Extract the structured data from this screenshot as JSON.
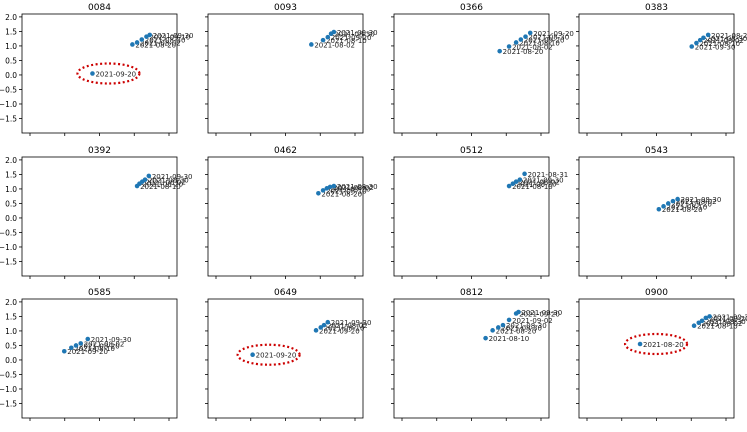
{
  "figure": {
    "shared_y_ticks": [
      "2.0",
      "1.5",
      "1.0",
      "0.5",
      "0.0",
      "−0.5",
      "−1.0",
      "−1.5"
    ]
  },
  "colors": {
    "point": "#1f77b4",
    "highlight": "#cc0000",
    "axis": "#000000",
    "label": "#222222"
  },
  "chart_data": [
    {
      "type": "scatter",
      "title": "0084",
      "ylim": [
        -2,
        2.1
      ],
      "xlim": [
        -1.5,
        1.8
      ],
      "grid": false,
      "points": [
        {
          "x": 0.0,
          "y": 0.05,
          "label": "2021-09-20"
        },
        {
          "x": 0.85,
          "y": 1.05,
          "label": "2021-08-20"
        },
        {
          "x": 0.95,
          "y": 1.12,
          "label": "2021-08-02"
        },
        {
          "x": 1.05,
          "y": 1.22,
          "label": "2021-08-30"
        },
        {
          "x": 1.15,
          "y": 1.32,
          "label": "2021-09-10"
        },
        {
          "x": 1.22,
          "y": 1.38,
          "label": "2021-09-30"
        }
      ],
      "highlight_label": "2021-09-20"
    },
    {
      "type": "scatter",
      "title": "0093",
      "ylim": [
        -2,
        2.1
      ],
      "xlim": [
        -1.5,
        1.8
      ],
      "grid": false,
      "points": [
        {
          "x": 0.7,
          "y": 1.05,
          "label": "2021-08-02"
        },
        {
          "x": 0.95,
          "y": 1.2,
          "label": "2021-08-10"
        },
        {
          "x": 1.05,
          "y": 1.3,
          "label": "2021-09-20"
        },
        {
          "x": 1.12,
          "y": 1.42,
          "label": "2021-08-30"
        },
        {
          "x": 1.18,
          "y": 1.48,
          "label": "2021-09-30"
        }
      ]
    },
    {
      "type": "scatter",
      "title": "0366",
      "ylim": [
        -2,
        2.1
      ],
      "xlim": [
        -1.5,
        1.8
      ],
      "grid": false,
      "points": [
        {
          "x": 0.75,
          "y": 0.82,
          "label": "2021-08-20"
        },
        {
          "x": 0.95,
          "y": 0.98,
          "label": "2021-08-02"
        },
        {
          "x": 1.1,
          "y": 1.12,
          "label": "2021-08-10"
        },
        {
          "x": 1.2,
          "y": 1.22,
          "label": "2021-09-20"
        },
        {
          "x": 1.3,
          "y": 1.32,
          "label": "2021-08-30"
        },
        {
          "x": 1.4,
          "y": 1.45,
          "label": "2021-09-20"
        }
      ]
    },
    {
      "type": "scatter",
      "title": "0383",
      "ylim": [
        -2,
        2.1
      ],
      "xlim": [
        -1.5,
        1.8
      ],
      "grid": false,
      "points": [
        {
          "x": 0.9,
          "y": 0.98,
          "label": "2021-09-30"
        },
        {
          "x": 1.0,
          "y": 1.1,
          "label": "2021-08-10"
        },
        {
          "x": 1.08,
          "y": 1.2,
          "label": "2021-08-02"
        },
        {
          "x": 1.15,
          "y": 1.28,
          "label": "2021-08-30"
        },
        {
          "x": 1.25,
          "y": 1.38,
          "label": "2021-08-20"
        }
      ]
    },
    {
      "type": "scatter",
      "title": "0392",
      "ylim": [
        -2,
        2.1
      ],
      "xlim": [
        -1.5,
        1.8
      ],
      "grid": false,
      "points": [
        {
          "x": 0.95,
          "y": 1.1,
          "label": "2021-08-10"
        },
        {
          "x": 1.0,
          "y": 1.18,
          "label": "2021-08-20"
        },
        {
          "x": 1.06,
          "y": 1.25,
          "label": "2021-08-02"
        },
        {
          "x": 1.12,
          "y": 1.32,
          "label": "2021-08-30"
        },
        {
          "x": 1.2,
          "y": 1.45,
          "label": "2021-09-30"
        }
      ]
    },
    {
      "type": "scatter",
      "title": "0462",
      "ylim": [
        -2,
        2.1
      ],
      "xlim": [
        -1.5,
        1.8
      ],
      "grid": false,
      "points": [
        {
          "x": 0.85,
          "y": 0.85,
          "label": "2021-08-20"
        },
        {
          "x": 0.95,
          "y": 0.95,
          "label": "2021-08-10"
        },
        {
          "x": 1.03,
          "y": 1.02,
          "label": "2021-09-20"
        },
        {
          "x": 1.1,
          "y": 1.07,
          "label": "2021-08-02"
        },
        {
          "x": 1.18,
          "y": 1.1,
          "label": "2021-08-30"
        }
      ]
    },
    {
      "type": "scatter",
      "title": "0512",
      "ylim": [
        -2,
        2.1
      ],
      "xlim": [
        -1.5,
        1.8
      ],
      "grid": false,
      "points": [
        {
          "x": 0.95,
          "y": 1.1,
          "label": "2021-08-10"
        },
        {
          "x": 1.03,
          "y": 1.18,
          "label": "2021-08-20"
        },
        {
          "x": 1.1,
          "y": 1.25,
          "label": "2021-08-02"
        },
        {
          "x": 1.18,
          "y": 1.32,
          "label": "2021-09-30"
        },
        {
          "x": 1.28,
          "y": 1.52,
          "label": "2021-08-31"
        }
      ]
    },
    {
      "type": "scatter",
      "title": "0543",
      "ylim": [
        -2,
        2.1
      ],
      "xlim": [
        -1.5,
        1.8
      ],
      "grid": false,
      "points": [
        {
          "x": 0.2,
          "y": 0.3,
          "label": "2021-08-20"
        },
        {
          "x": 0.3,
          "y": 0.4,
          "label": "2021-08-10"
        },
        {
          "x": 0.4,
          "y": 0.5,
          "label": "2021-09-20"
        },
        {
          "x": 0.5,
          "y": 0.58,
          "label": "2021-08-02"
        },
        {
          "x": 0.6,
          "y": 0.65,
          "label": "2021-08-30"
        }
      ]
    },
    {
      "type": "scatter",
      "title": "0585",
      "ylim": [
        -2,
        2.1
      ],
      "xlim": [
        -1.5,
        1.8
      ],
      "grid": false,
      "points": [
        {
          "x": -0.6,
          "y": 0.3,
          "label": "2021-09-20"
        },
        {
          "x": -0.45,
          "y": 0.42,
          "label": "2021-08-10"
        },
        {
          "x": -0.35,
          "y": 0.5,
          "label": "2021-08-20"
        },
        {
          "x": -0.25,
          "y": 0.57,
          "label": "2021-08-02"
        },
        {
          "x": -0.1,
          "y": 0.72,
          "label": "2021-09-30"
        }
      ]
    },
    {
      "type": "scatter",
      "title": "0649",
      "ylim": [
        -2,
        2.1
      ],
      "xlim": [
        -1.5,
        1.8
      ],
      "grid": false,
      "points": [
        {
          "x": -0.55,
          "y": 0.18,
          "label": "2021-09-20"
        },
        {
          "x": 0.8,
          "y": 1.02,
          "label": "2021-09-20"
        },
        {
          "x": 0.9,
          "y": 1.12,
          "label": "2021-08-10"
        },
        {
          "x": 0.97,
          "y": 1.2,
          "label": "2021-08-02"
        },
        {
          "x": 1.05,
          "y": 1.3,
          "label": "2021-09-30"
        }
      ],
      "highlight_label": "2021-09-20"
    },
    {
      "type": "scatter",
      "title": "0812",
      "ylim": [
        -2,
        2.1
      ],
      "xlim": [
        -1.5,
        1.8
      ],
      "grid": false,
      "points": [
        {
          "x": 0.45,
          "y": 0.75,
          "label": "2021-08-10"
        },
        {
          "x": 0.6,
          "y": 1.02,
          "label": "2021-08-20"
        },
        {
          "x": 0.72,
          "y": 1.12,
          "label": "2021-08-30"
        },
        {
          "x": 0.82,
          "y": 1.2,
          "label": "2021-08-30"
        },
        {
          "x": 0.95,
          "y": 1.38,
          "label": "2021-09-02"
        },
        {
          "x": 1.1,
          "y": 1.6,
          "label": "2021-09-20"
        },
        {
          "x": 1.15,
          "y": 1.65,
          "label": "2021-09-30"
        }
      ]
    },
    {
      "type": "scatter",
      "title": "0900",
      "ylim": [
        -2,
        2.1
      ],
      "xlim": [
        -1.5,
        1.8
      ],
      "grid": false,
      "points": [
        {
          "x": -0.2,
          "y": 0.55,
          "label": "2021-08-20"
        },
        {
          "x": 0.95,
          "y": 1.18,
          "label": "2021-08-10"
        },
        {
          "x": 1.05,
          "y": 1.28,
          "label": "2021-08-02"
        },
        {
          "x": 1.12,
          "y": 1.35,
          "label": "2021-08-30"
        },
        {
          "x": 1.2,
          "y": 1.45,
          "label": "2021-09-20"
        },
        {
          "x": 1.28,
          "y": 1.5,
          "label": "2021-09-30"
        }
      ],
      "highlight_label": "2021-08-20"
    }
  ]
}
